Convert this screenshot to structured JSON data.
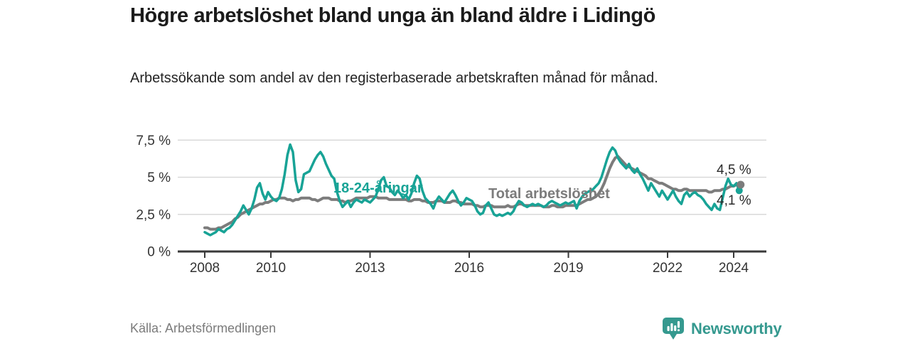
{
  "header": {
    "title": "Högre arbetslöshet bland unga än bland äldre i Lidingö",
    "subtitle": "Arbetssökande som andel av den registerbaserade arbetskraften månad för månad."
  },
  "footer": {
    "source": "Källa: Arbetsförmedlingen",
    "brand": "Newsworthy"
  },
  "colors": {
    "youth": "#18a396",
    "total": "#7c7c7c",
    "axis": "#3a3a3a",
    "grid": "#d9d9d9",
    "tick_text": "#333333",
    "brand": "#35998f"
  },
  "chart_data": {
    "type": "line",
    "title": "Högre arbetslöshet bland unga än bland äldre i Lidingö",
    "subtitle": "Arbetssökande som andel av den registerbaserade arbetskraften månad för månad.",
    "source": "Källa: Arbetsförmedlingen",
    "grid": true,
    "legend_position": "inline-labels",
    "ylim": [
      0,
      7.9
    ],
    "xlim": [
      2008,
      2024.6
    ],
    "x_start_year": 2008,
    "x_step_months": 1,
    "x_ticks": [
      2008,
      2010,
      2013,
      2016,
      2019,
      2022,
      2024
    ],
    "y_ticks": [
      {
        "value": 0,
        "label": "0 %"
      },
      {
        "value": 2.5,
        "label": "2,5 %"
      },
      {
        "value": 5,
        "label": "5 %"
      },
      {
        "value": 7.5,
        "label": "7,5 %"
      }
    ],
    "series": [
      {
        "name": "Total arbetslöshet",
        "color": "#7c7c7c",
        "end_label": "4,5 %",
        "end_value": 4.5,
        "values": [
          1.6,
          1.6,
          1.5,
          1.5,
          1.5,
          1.6,
          1.6,
          1.7,
          1.8,
          1.9,
          2.0,
          2.2,
          2.3,
          2.5,
          2.6,
          2.7,
          2.8,
          2.9,
          3.0,
          3.1,
          3.2,
          3.2,
          3.3,
          3.3,
          3.4,
          3.5,
          3.5,
          3.6,
          3.6,
          3.6,
          3.5,
          3.5,
          3.4,
          3.5,
          3.5,
          3.6,
          3.6,
          3.6,
          3.6,
          3.5,
          3.5,
          3.4,
          3.5,
          3.6,
          3.6,
          3.6,
          3.5,
          3.5,
          3.5,
          3.4,
          3.4,
          3.3,
          3.4,
          3.4,
          3.5,
          3.6,
          3.6,
          3.6,
          3.6,
          3.6,
          3.7,
          3.7,
          3.7,
          3.6,
          3.6,
          3.6,
          3.6,
          3.5,
          3.5,
          3.5,
          3.5,
          3.5,
          3.5,
          3.5,
          3.4,
          3.4,
          3.5,
          3.5,
          3.5,
          3.4,
          3.4,
          3.3,
          3.3,
          3.3,
          3.4,
          3.4,
          3.4,
          3.3,
          3.3,
          3.3,
          3.4,
          3.4,
          3.3,
          3.3,
          3.2,
          3.2,
          3.2,
          3.2,
          3.1,
          3.1,
          3.0,
          3.0,
          3.1,
          3.1,
          3.1,
          3.0,
          3.0,
          3.0,
          3.0,
          3.0,
          3.1,
          3.0,
          3.0,
          3.1,
          3.2,
          3.2,
          3.1,
          3.1,
          3.1,
          3.1,
          3.1,
          3.1,
          3.1,
          3.0,
          3.0,
          3.0,
          3.1,
          3.1,
          3.0,
          3.0,
          3.0,
          3.1,
          3.1,
          3.1,
          3.1,
          3.1,
          3.2,
          3.3,
          3.4,
          3.5,
          3.5,
          3.6,
          3.7,
          3.9,
          4.2,
          4.6,
          5.1,
          5.6,
          6.0,
          6.3,
          6.4,
          6.2,
          6.0,
          5.8,
          5.7,
          5.6,
          5.5,
          5.4,
          5.3,
          5.2,
          5.1,
          4.9,
          4.9,
          4.8,
          4.7,
          4.6,
          4.6,
          4.5,
          4.4,
          4.3,
          4.2,
          4.2,
          4.1,
          4.1,
          4.2,
          4.2,
          4.1,
          4.1,
          4.1,
          4.1,
          4.1,
          4.1,
          4.1,
          4.0,
          4.0,
          4.1,
          4.1,
          4.1,
          4.2,
          4.2,
          4.3,
          4.4,
          4.4,
          4.5,
          4.5
        ]
      },
      {
        "name": "18-24-åringar",
        "color": "#18a396",
        "end_label": "4,1 %",
        "end_value": 4.1,
        "values": [
          1.3,
          1.2,
          1.1,
          1.2,
          1.3,
          1.5,
          1.4,
          1.3,
          1.5,
          1.6,
          1.8,
          2.1,
          2.4,
          2.7,
          3.1,
          2.8,
          2.5,
          2.9,
          3.5,
          4.3,
          4.6,
          3.9,
          3.5,
          4.0,
          3.7,
          3.5,
          3.4,
          3.6,
          4.2,
          5.2,
          6.5,
          7.2,
          6.7,
          4.8,
          4.0,
          4.2,
          5.2,
          5.3,
          5.4,
          5.8,
          6.2,
          6.5,
          6.7,
          6.4,
          5.9,
          5.5,
          5.1,
          4.9,
          4.0,
          3.4,
          3.0,
          3.2,
          3.4,
          3.0,
          3.3,
          3.5,
          3.4,
          3.3,
          3.5,
          3.4,
          3.3,
          3.5,
          3.7,
          4.2,
          4.8,
          5.0,
          4.4,
          4.3,
          4.0,
          3.8,
          4.1,
          3.9,
          3.6,
          3.8,
          3.5,
          3.9,
          4.6,
          5.1,
          4.9,
          4.1,
          3.6,
          3.4,
          3.2,
          2.9,
          3.4,
          3.7,
          3.5,
          3.3,
          3.6,
          3.9,
          4.1,
          3.8,
          3.4,
          3.1,
          3.3,
          3.6,
          3.5,
          3.4,
          3.1,
          2.7,
          2.5,
          2.6,
          3.1,
          3.3,
          2.9,
          2.5,
          2.4,
          2.5,
          2.4,
          2.5,
          2.6,
          2.5,
          2.7,
          3.1,
          3.4,
          3.3,
          3.1,
          3.0,
          3.1,
          3.2,
          3.1,
          3.2,
          3.1,
          3.0,
          3.1,
          3.3,
          3.4,
          3.3,
          3.2,
          3.1,
          3.2,
          3.3,
          3.2,
          3.3,
          3.4,
          2.9,
          3.4,
          3.7,
          3.9,
          4.0,
          4.1,
          4.2,
          4.4,
          4.6,
          5.0,
          5.6,
          6.2,
          6.7,
          7.0,
          6.8,
          6.3,
          6.0,
          5.8,
          5.6,
          5.9,
          5.5,
          5.3,
          5.6,
          5.2,
          4.9,
          4.5,
          4.1,
          4.6,
          4.3,
          4.0,
          3.7,
          4.1,
          3.8,
          3.5,
          3.8,
          4.1,
          3.7,
          3.4,
          3.2,
          3.8,
          4.0,
          3.7,
          3.9,
          4.0,
          3.8,
          3.7,
          3.5,
          3.2,
          3.0,
          2.8,
          3.2,
          2.9,
          2.8,
          3.6,
          4.4,
          4.9,
          4.5,
          4.4,
          4.6,
          4.1
        ]
      }
    ]
  }
}
